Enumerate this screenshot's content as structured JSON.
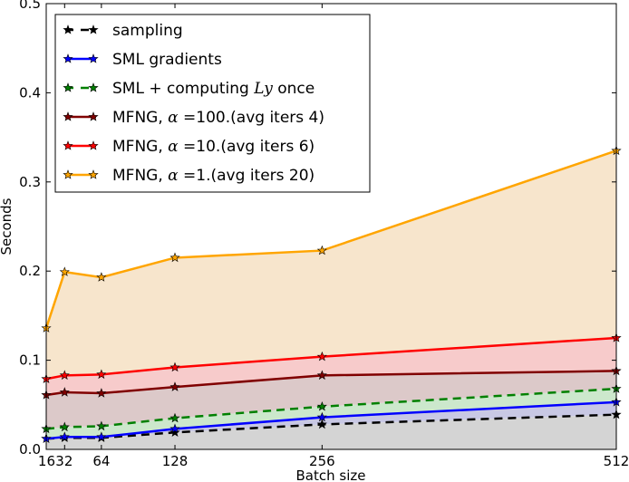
{
  "chart_data": {
    "type": "line",
    "title": "",
    "xlabel": "Batch size",
    "ylabel": "Seconds",
    "xlim": [
      16,
      512
    ],
    "ylim": [
      0,
      0.5
    ],
    "x": [
      16,
      32,
      64,
      128,
      256,
      512
    ],
    "xticks": [
      16,
      32,
      64,
      128,
      256,
      512
    ],
    "xtick_labels": [
      "16",
      "32",
      "64",
      "128",
      "256",
      "512"
    ],
    "yticks": [
      0,
      0.1,
      0.2,
      0.3,
      0.4,
      0.5
    ],
    "ytick_labels": [
      "0.0",
      "0.1",
      "0.2",
      "0.3",
      "0.4",
      "0.5"
    ],
    "grid": false,
    "legend_position": "top-left",
    "series": [
      {
        "name": "sampling",
        "color": "#000000",
        "dashed": true,
        "fill": "#d4d4d4",
        "values": [
          0.012,
          0.013,
          0.013,
          0.019,
          0.028,
          0.039
        ]
      },
      {
        "name": "SML gradients",
        "color": "#0000ff",
        "dashed": false,
        "fill": "#c8c8e4",
        "values": [
          0.012,
          0.014,
          0.014,
          0.023,
          0.036,
          0.053
        ]
      },
      {
        "name": "SML + computing Ly once",
        "label_pre": "SML + computing ",
        "label_math": "Ly",
        "label_post": " once",
        "color": "#008000",
        "dashed": true,
        "fill": "#cce8cc",
        "values": [
          0.023,
          0.025,
          0.026,
          0.035,
          0.048,
          0.068
        ]
      },
      {
        "name": "MFNG, α =100.(avg iters 4)",
        "label_pre": "MFNG, ",
        "label_math": "α",
        "label_post": " =100.(avg iters 4)",
        "color": "#800000",
        "dashed": false,
        "fill": "#dcc9c9",
        "values": [
          0.061,
          0.064,
          0.063,
          0.07,
          0.083,
          0.088
        ]
      },
      {
        "name": "MFNG, α =10.(avg iters 6)",
        "label_pre": "MFNG, ",
        "label_math": "α",
        "label_post": " =10.(avg iters 6)",
        "color": "#ff0000",
        "dashed": false,
        "fill": "#f7cbcb",
        "values": [
          0.079,
          0.083,
          0.084,
          0.092,
          0.104,
          0.125
        ]
      },
      {
        "name": "MFNG, α =1.(avg iters 20)",
        "label_pre": "MFNG, ",
        "label_math": "α",
        "label_post": " =1.(avg iters 20)",
        "color": "#ffa500",
        "dashed": false,
        "fill": "#f7e5cc",
        "values": [
          0.136,
          0.199,
          0.193,
          0.215,
          0.223,
          0.335
        ]
      }
    ]
  }
}
